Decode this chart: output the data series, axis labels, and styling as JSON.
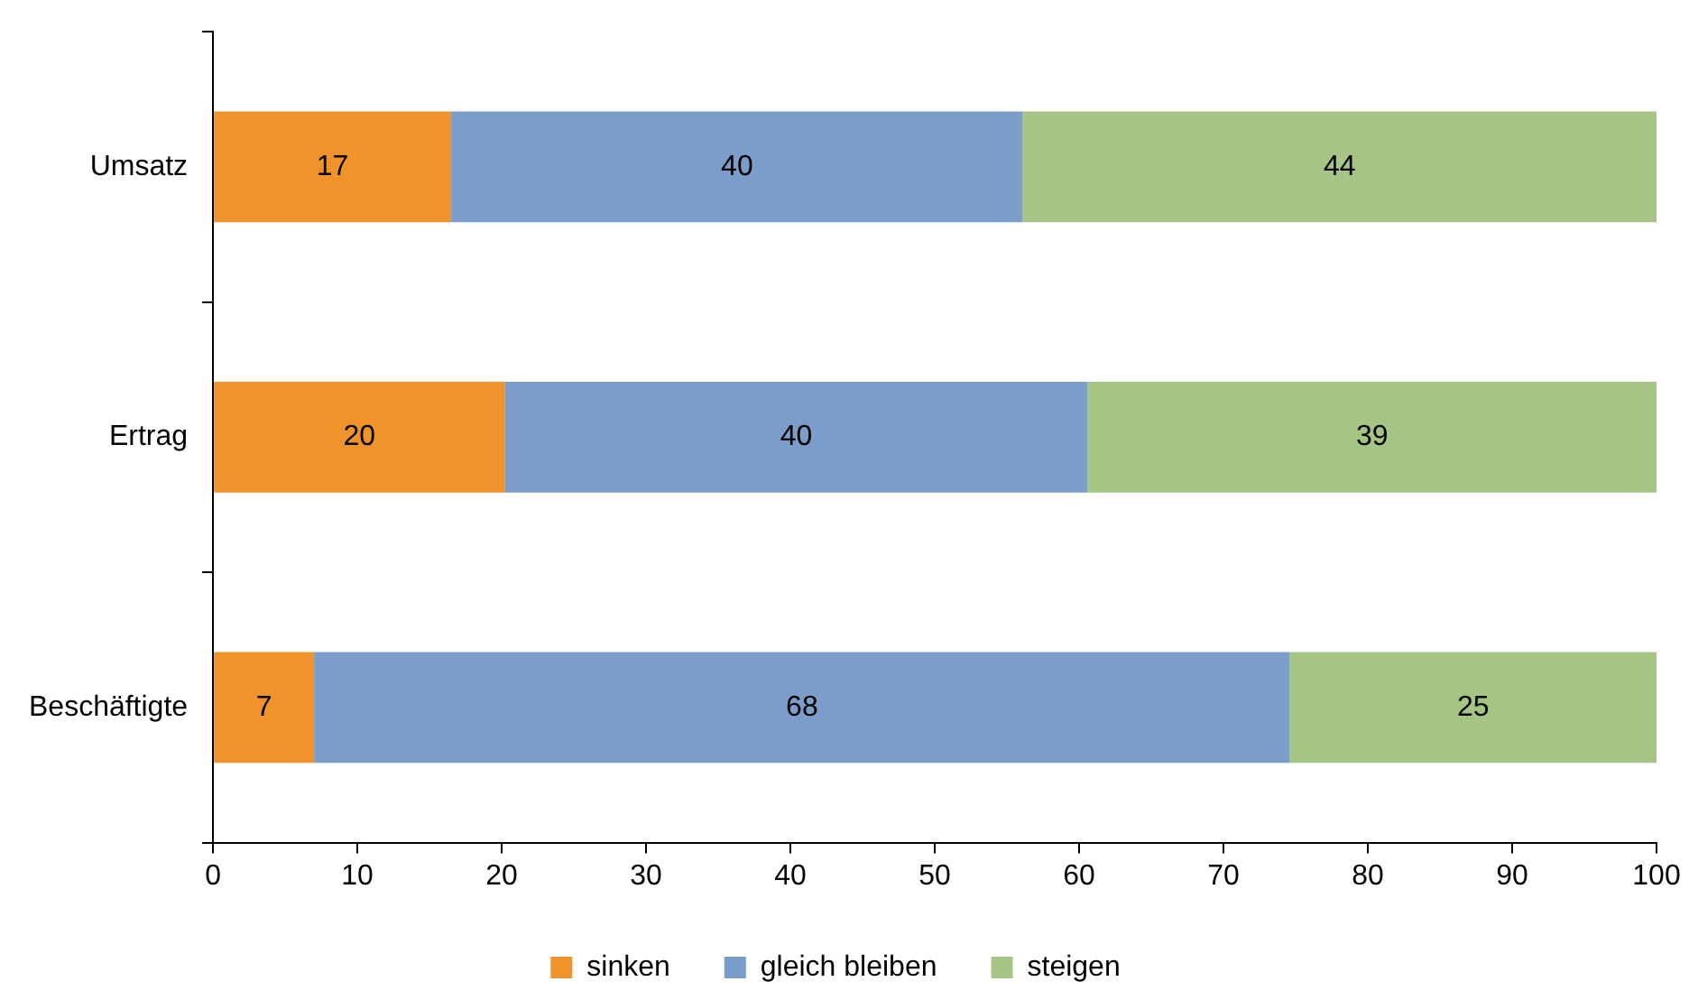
{
  "chart_data": {
    "type": "bar",
    "orientation": "horizontal",
    "stacked": true,
    "categories": [
      "Umsatz",
      "Ertrag",
      "Beschäftigte"
    ],
    "series": [
      {
        "name": "sinken",
        "color": "#f0932b",
        "values": [
          16.5,
          20.2,
          7.0
        ],
        "value_labels": [
          "17",
          "20",
          "7"
        ]
      },
      {
        "name": "gleich bleiben",
        "color": "#7b9dc9",
        "values": [
          39.6,
          40.4,
          67.6
        ],
        "value_labels": [
          "40",
          "40",
          "68"
        ]
      },
      {
        "name": "steigen",
        "color": "#a6c484",
        "values": [
          43.9,
          39.4,
          25.4
        ],
        "value_labels": [
          "44",
          "39",
          "25"
        ]
      }
    ],
    "xlim": [
      0,
      100
    ],
    "xticks": [
      0,
      10,
      20,
      30,
      40,
      50,
      60,
      70,
      80,
      90,
      100
    ],
    "grid": false,
    "legend": "bottom"
  }
}
